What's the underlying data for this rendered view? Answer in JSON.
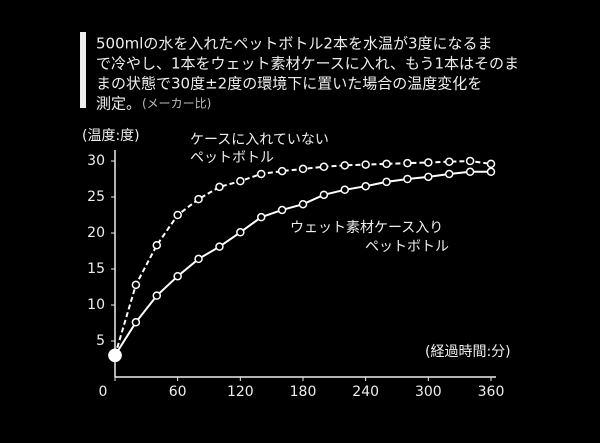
{
  "chart_data": {
    "type": "line",
    "description": [
      "500mlの水を入れたペットボトル2本を水温が3度になるま",
      "で冷やし、1本をウェット素材ケースに入れ、もう1本はそのま",
      "まの状態で30度±2度の環境下に置いた場合の温度変化を",
      "測定。"
    ],
    "note": "(メーカー比)",
    "ylabel": "(温度:度)",
    "xlabel": "(経過時間:分)",
    "x": [
      0,
      20,
      40,
      60,
      80,
      100,
      120,
      140,
      160,
      180,
      200,
      220,
      240,
      260,
      280,
      300,
      320,
      340,
      360
    ],
    "series": [
      {
        "name": [
          "ケースに入れていない",
          "ペットボトル"
        ],
        "color": "#ffffff",
        "dash": true,
        "values": [
          3,
          12.8,
          18.3,
          22.5,
          24.7,
          26.4,
          27.2,
          28.2,
          28.6,
          28.9,
          29.2,
          29.4,
          29.5,
          29.6,
          29.7,
          29.8,
          29.9,
          30,
          29.6
        ]
      },
      {
        "name": [
          "ウェット素材ケース入り",
          "ペットボトル"
        ],
        "color": "#ffffff",
        "dash": false,
        "values": [
          3,
          7.6,
          11.3,
          14.0,
          16.4,
          18.1,
          20.1,
          22.2,
          23.2,
          24.0,
          25.3,
          26.0,
          26.5,
          27.1,
          27.5,
          27.8,
          28.2,
          28.5,
          28.5
        ]
      }
    ],
    "xlim": [
      0,
      360
    ],
    "xticks": [
      0,
      60,
      120,
      180,
      240,
      300,
      360
    ],
    "ylim": [
      0,
      30
    ],
    "yticks": [
      5,
      10,
      15,
      20,
      25,
      30
    ]
  }
}
